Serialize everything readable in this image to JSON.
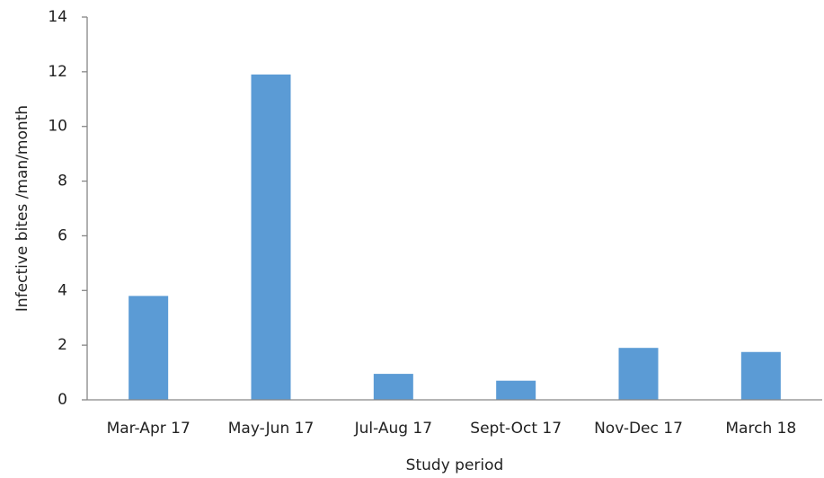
{
  "chart_data": {
    "type": "bar",
    "x_label": "Study period",
    "y_label": "Infective bites /man/month",
    "categories": [
      "Mar-Apr 17",
      "May-Jun 17",
      "Jul-Aug 17",
      "Sept-Oct 17",
      "Nov-Dec 17",
      "March 18"
    ],
    "values": [
      3.8,
      11.9,
      0.95,
      0.7,
      1.9,
      1.75
    ],
    "color": "#5b9bd5",
    "ylim": [
      0,
      14
    ],
    "yticks": [
      0,
      2,
      4,
      6,
      8,
      10,
      12,
      14
    ],
    "grid": false
  }
}
